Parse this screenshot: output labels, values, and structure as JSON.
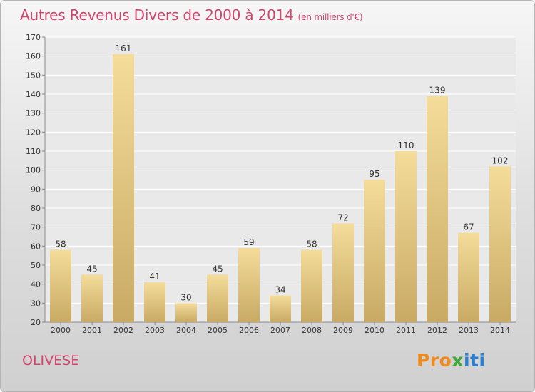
{
  "header": {
    "title": "Autres Revenus Divers de 2000 à 2014",
    "subtitle": "(en milliers d'€)"
  },
  "footer": {
    "commune": "OLIVESE",
    "logo_text": "Proxiti"
  },
  "colors": {
    "title": "#d2456d",
    "bar_light": "#f4dc9a",
    "bar_dark": "#c8aa64"
  },
  "chart_data": {
    "type": "bar",
    "categories": [
      "2000",
      "2001",
      "2002",
      "2003",
      "2004",
      "2005",
      "2006",
      "2007",
      "2008",
      "2009",
      "2010",
      "2011",
      "2012",
      "2013",
      "2014"
    ],
    "values": [
      58,
      45,
      161,
      41,
      30,
      45,
      59,
      34,
      58,
      72,
      95,
      110,
      139,
      67,
      102
    ],
    "title": "Autres Revenus Divers de 2000 à 2014",
    "xlabel": "",
    "ylabel": "",
    "ylim": [
      20,
      170
    ],
    "yticks": [
      20,
      30,
      40,
      50,
      60,
      70,
      80,
      90,
      100,
      110,
      120,
      130,
      140,
      150,
      160,
      170
    ],
    "grid": true,
    "data_labels": true
  }
}
